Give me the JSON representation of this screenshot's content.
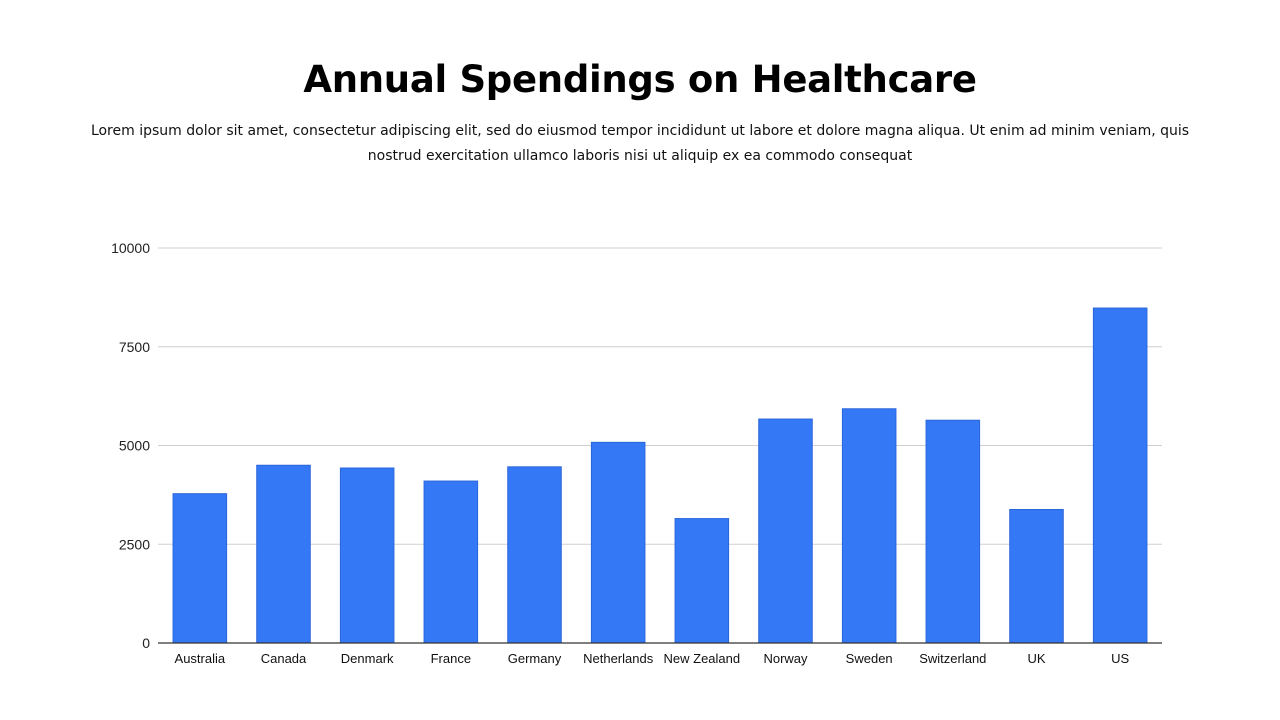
{
  "title": "Annual Spendings on Healthcare",
  "subtitle": "Lorem ipsum dolor sit amet, consectetur adipiscing elit, sed do eiusmod tempor incididunt ut labore et dolore magna aliqua. Ut enim ad minim veniam, quis nostrud exercitation ullamco laboris nisi ut aliquip ex ea commodo consequat",
  "colors": {
    "bar": "#3478f6",
    "grid": "#d0d0d0",
    "axis": "#333333"
  },
  "chart_data": {
    "type": "bar",
    "title": "Annual Spendings on Healthcare",
    "categories": [
      "Australia",
      "Canada",
      "Denmark",
      "France",
      "Germany",
      "Netherlands",
      "New Zealand",
      "Norway",
      "Sweden",
      "Switzerland",
      "UK",
      "US"
    ],
    "values": [
      3780,
      4500,
      4430,
      4100,
      4460,
      5080,
      3150,
      5670,
      5930,
      5640,
      3380,
      8480
    ],
    "yticks": [
      0,
      2500,
      5000,
      7500,
      10000
    ],
    "ylim": [
      0,
      10000
    ],
    "xlabel": "",
    "ylabel": "",
    "grid": true,
    "legend": "none"
  }
}
